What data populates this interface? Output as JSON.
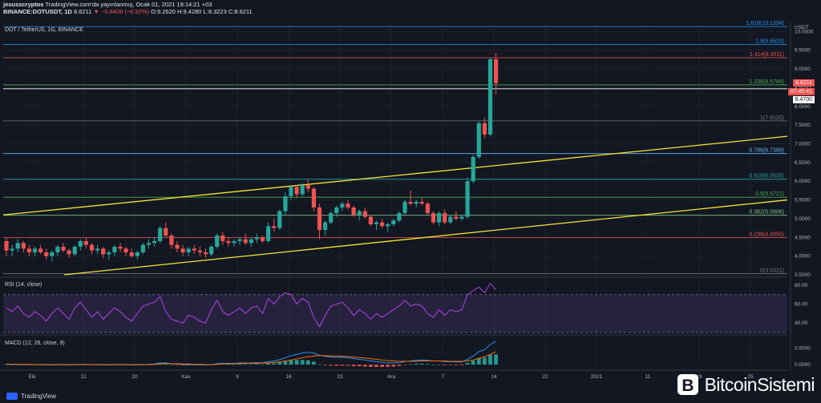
{
  "header": {
    "line1_user": "jesusscryptos",
    "line1_rest": "TradingView.com'da yayınlanmış, Ocak 01, 2021 19:14:21 +03",
    "symbol": "BINANCE:DOTUSDT, 1D",
    "price": "8.6211",
    "change": "−0.6408 (−6.92%)",
    "ohlc": "O:9.2620 H:9.4280 L:8.3223 C:8.6211"
  },
  "footer": {
    "brand": "TradingView"
  },
  "watermark": {
    "text": "BitcoinSistemi"
  },
  "colors": {
    "background": "#131722",
    "up": "#26a69a",
    "down": "#ef5350",
    "channel": "#f5e536",
    "rsi": "#b045e6",
    "macd": "#2196f3",
    "signal": "#ff6d00"
  },
  "chart_data": {
    "type": "candlestick",
    "title": "DOT / TetherUS, 1G, BINANCE",
    "currency": "USDT",
    "x_ticks": [
      "Eki",
      "12",
      "20",
      "Kas",
      "9",
      "16",
      "23",
      "Ara",
      "7",
      "14",
      "22",
      "2021",
      "11",
      "19",
      "25"
    ],
    "y_ticks": [
      "10.0000",
      "9.5000",
      "9.0000",
      "8.5000",
      "8.0000",
      "7.5000",
      "7.0000",
      "6.5000",
      "6.0000",
      "5.5000",
      "5.0000",
      "4.5000",
      "4.0000",
      "3.5000"
    ],
    "ylim": [
      3.5,
      10.2
    ],
    "current_price": "8.6211",
    "countdown": "07:45:41",
    "reference_price": "8.4700",
    "fib_levels": [
      {
        "label": "1.618(10.1334)",
        "value": 10.1334,
        "color": "#2196f3"
      },
      {
        "label": "1.5(9.6520)",
        "value": 9.652,
        "color": "#2196f3"
      },
      {
        "label": "1.414(9.3011)",
        "value": 9.3011,
        "color": "#ef5350"
      },
      {
        "label": "1.236(8.5749)",
        "value": 8.5749,
        "color": "#4caf50"
      },
      {
        "label": "1(7.6120)",
        "value": 7.612,
        "color": "#787b86"
      },
      {
        "label": "0.786(6.7389)",
        "value": 6.7389,
        "color": "#64b5f6"
      },
      {
        "label": "0.618(6.0535)",
        "value": 6.0535,
        "color": "#26a69a"
      },
      {
        "label": "0.5(5.5721)",
        "value": 5.5721,
        "color": "#4caf50"
      },
      {
        "label": "0.382(5.0906)",
        "value": 5.0906,
        "color": "#81c784"
      },
      {
        "label": "0.236(4.4950)",
        "value": 4.495,
        "color": "#ef5350"
      },
      {
        "label": "0(3.5321)",
        "value": 3.5321,
        "color": "#787b86"
      }
    ],
    "candles": [
      [
        4.4,
        4.5,
        4.0,
        4.15
      ],
      [
        4.15,
        4.3,
        4.0,
        4.2
      ],
      [
        4.2,
        4.45,
        4.1,
        4.35
      ],
      [
        4.35,
        4.4,
        4.1,
        4.2
      ],
      [
        4.2,
        4.3,
        4.0,
        4.1
      ],
      [
        4.1,
        4.25,
        4.0,
        4.2
      ],
      [
        4.2,
        4.3,
        4.05,
        4.1
      ],
      [
        4.1,
        4.2,
        3.9,
        4.0
      ],
      [
        4.0,
        4.15,
        3.85,
        4.1
      ],
      [
        4.1,
        4.3,
        4.0,
        4.25
      ],
      [
        4.25,
        4.35,
        4.1,
        4.15
      ],
      [
        4.15,
        4.2,
        3.95,
        4.05
      ],
      [
        4.05,
        4.3,
        4.0,
        4.25
      ],
      [
        4.25,
        4.45,
        4.15,
        4.4
      ],
      [
        4.4,
        4.5,
        4.2,
        4.3
      ],
      [
        4.3,
        4.35,
        4.05,
        4.15
      ],
      [
        4.15,
        4.3,
        4.05,
        4.2
      ],
      [
        4.2,
        4.25,
        3.95,
        4.05
      ],
      [
        4.05,
        4.15,
        3.9,
        4.1
      ],
      [
        4.1,
        4.3,
        4.0,
        4.25
      ],
      [
        4.25,
        4.35,
        4.1,
        4.2
      ],
      [
        4.2,
        4.25,
        4.0,
        4.1
      ],
      [
        4.1,
        4.2,
        3.95,
        4.0
      ],
      [
        4.0,
        4.15,
        3.9,
        4.1
      ],
      [
        4.1,
        4.35,
        4.05,
        4.3
      ],
      [
        4.3,
        4.45,
        4.2,
        4.35
      ],
      [
        4.35,
        4.5,
        4.25,
        4.4
      ],
      [
        4.4,
        4.8,
        4.35,
        4.75
      ],
      [
        4.75,
        4.9,
        4.5,
        4.55
      ],
      [
        4.55,
        4.6,
        4.2,
        4.3
      ],
      [
        4.3,
        4.4,
        4.1,
        4.2
      ],
      [
        4.2,
        4.3,
        4.0,
        4.1
      ],
      [
        4.1,
        4.25,
        4.0,
        4.2
      ],
      [
        4.2,
        4.3,
        4.05,
        4.15
      ],
      [
        4.15,
        4.25,
        4.0,
        4.1
      ],
      [
        4.1,
        4.2,
        3.95,
        4.05
      ],
      [
        4.05,
        4.3,
        4.0,
        4.25
      ],
      [
        4.25,
        4.6,
        4.2,
        4.55
      ],
      [
        4.55,
        4.65,
        4.3,
        4.4
      ],
      [
        4.4,
        4.5,
        4.25,
        4.35
      ],
      [
        4.35,
        4.45,
        4.25,
        4.4
      ],
      [
        4.4,
        4.5,
        4.3,
        4.45
      ],
      [
        4.45,
        4.6,
        4.3,
        4.35
      ],
      [
        4.35,
        4.5,
        4.25,
        4.45
      ],
      [
        4.45,
        4.6,
        4.35,
        4.5
      ],
      [
        4.5,
        4.55,
        4.35,
        4.4
      ],
      [
        4.4,
        4.9,
        4.35,
        4.8
      ],
      [
        4.8,
        5.0,
        4.65,
        4.75
      ],
      [
        4.75,
        5.25,
        4.7,
        5.2
      ],
      [
        5.2,
        5.7,
        5.1,
        5.6
      ],
      [
        5.6,
        5.9,
        5.5,
        5.85
      ],
      [
        5.85,
        5.9,
        5.55,
        5.65
      ],
      [
        5.65,
        5.95,
        5.6,
        5.9
      ],
      [
        5.9,
        6.05,
        5.7,
        5.8
      ],
      [
        5.8,
        5.85,
        5.2,
        5.3
      ],
      [
        5.3,
        5.4,
        4.45,
        4.7
      ],
      [
        4.7,
        4.95,
        4.55,
        4.9
      ],
      [
        4.9,
        5.2,
        4.85,
        5.15
      ],
      [
        5.15,
        5.35,
        5.05,
        5.3
      ],
      [
        5.3,
        5.45,
        5.2,
        5.4
      ],
      [
        5.4,
        5.5,
        5.25,
        5.3
      ],
      [
        5.3,
        5.35,
        5.05,
        5.1
      ],
      [
        5.1,
        5.25,
        4.95,
        5.2
      ],
      [
        5.2,
        5.3,
        5.0,
        5.05
      ],
      [
        5.05,
        5.1,
        4.8,
        4.85
      ],
      [
        4.85,
        4.95,
        4.7,
        4.9
      ],
      [
        4.9,
        5.0,
        4.75,
        4.8
      ],
      [
        4.8,
        4.9,
        4.65,
        4.85
      ],
      [
        4.85,
        5.0,
        4.8,
        4.95
      ],
      [
        4.95,
        5.2,
        4.9,
        5.15
      ],
      [
        5.15,
        5.5,
        5.1,
        5.45
      ],
      [
        5.45,
        5.75,
        5.35,
        5.4
      ],
      [
        5.4,
        5.5,
        5.3,
        5.45
      ],
      [
        5.45,
        5.55,
        5.35,
        5.4
      ],
      [
        5.4,
        5.45,
        5.1,
        5.15
      ],
      [
        5.15,
        5.2,
        4.85,
        4.9
      ],
      [
        4.9,
        5.2,
        4.8,
        5.15
      ],
      [
        5.15,
        5.25,
        4.85,
        4.9
      ],
      [
        4.9,
        5.1,
        4.85,
        5.05
      ],
      [
        5.05,
        5.2,
        4.95,
        5.0
      ],
      [
        5.0,
        5.1,
        4.95,
        5.05
      ],
      [
        5.05,
        6.1,
        5.0,
        6.0
      ],
      [
        6.0,
        6.7,
        5.95,
        6.65
      ],
      [
        6.65,
        7.6,
        6.6,
        7.55
      ],
      [
        7.55,
        7.7,
        7.15,
        7.25
      ],
      [
        7.25,
        9.3,
        7.2,
        9.26
      ],
      [
        9.26,
        9.43,
        8.32,
        8.62
      ]
    ],
    "rsi": {
      "label": "RSI (14, close)",
      "y_ticks": [
        "80.00",
        "60.00",
        "40.00"
      ],
      "ylim": [
        30,
        85
      ],
      "upper": 70,
      "lower": 30,
      "values": [
        56,
        52,
        58,
        50,
        46,
        52,
        48,
        42,
        50,
        56,
        50,
        44,
        56,
        62,
        54,
        46,
        52,
        44,
        50,
        56,
        52,
        46,
        42,
        50,
        58,
        60,
        62,
        68,
        52,
        44,
        42,
        40,
        48,
        46,
        42,
        40,
        54,
        64,
        52,
        48,
        52,
        56,
        50,
        56,
        58,
        50,
        66,
        60,
        68,
        72,
        70,
        60,
        66,
        62,
        46,
        36,
        48,
        58,
        60,
        62,
        56,
        48,
        54,
        50,
        44,
        50,
        46,
        50,
        54,
        58,
        64,
        58,
        60,
        58,
        50,
        46,
        54,
        48,
        54,
        52,
        54,
        70,
        74,
        78,
        72,
        82,
        75
      ]
    },
    "macd": {
      "label": "MACD (12, 26, close, 9)",
      "y_ticks": [
        "0.5000",
        "0.0000"
      ],
      "ylim": [
        -0.07,
        0.8
      ],
      "macd": [
        0.02,
        0.01,
        0.01,
        0.0,
        0.0,
        0.0,
        0.0,
        -0.01,
        -0.01,
        0.0,
        0.0,
        -0.01,
        0.0,
        0.01,
        0.01,
        0.0,
        0.0,
        -0.01,
        -0.01,
        0.0,
        0.0,
        0.0,
        -0.01,
        -0.01,
        0.0,
        0.01,
        0.02,
        0.05,
        0.05,
        0.03,
        0.02,
        0.0,
        0.0,
        0.0,
        -0.01,
        -0.01,
        0.0,
        0.03,
        0.04,
        0.04,
        0.04,
        0.05,
        0.05,
        0.05,
        0.06,
        0.06,
        0.09,
        0.11,
        0.15,
        0.21,
        0.27,
        0.31,
        0.35,
        0.37,
        0.35,
        0.28,
        0.25,
        0.23,
        0.22,
        0.22,
        0.21,
        0.18,
        0.16,
        0.14,
        0.11,
        0.09,
        0.07,
        0.05,
        0.05,
        0.06,
        0.09,
        0.11,
        0.13,
        0.14,
        0.13,
        0.11,
        0.11,
        0.09,
        0.09,
        0.08,
        0.08,
        0.16,
        0.26,
        0.39,
        0.45,
        0.61,
        0.7
      ],
      "signal": [
        0.01,
        0.01,
        0.01,
        0.01,
        0.01,
        0.0,
        0.0,
        0.0,
        0.0,
        0.0,
        0.0,
        0.0,
        0.0,
        0.0,
        0.0,
        0.0,
        0.0,
        0.0,
        0.0,
        0.0,
        0.0,
        0.0,
        0.0,
        0.0,
        0.0,
        0.0,
        0.01,
        0.02,
        0.03,
        0.03,
        0.03,
        0.02,
        0.02,
        0.01,
        0.01,
        0.0,
        0.0,
        0.01,
        0.02,
        0.02,
        0.03,
        0.03,
        0.04,
        0.04,
        0.04,
        0.05,
        0.05,
        0.07,
        0.08,
        0.11,
        0.14,
        0.17,
        0.21,
        0.24,
        0.26,
        0.27,
        0.27,
        0.26,
        0.26,
        0.25,
        0.24,
        0.23,
        0.21,
        0.2,
        0.18,
        0.16,
        0.14,
        0.12,
        0.11,
        0.1,
        0.1,
        0.1,
        0.1,
        0.11,
        0.11,
        0.11,
        0.11,
        0.11,
        0.1,
        0.1,
        0.1,
        0.11,
        0.14,
        0.19,
        0.24,
        0.31,
        0.39
      ]
    }
  }
}
